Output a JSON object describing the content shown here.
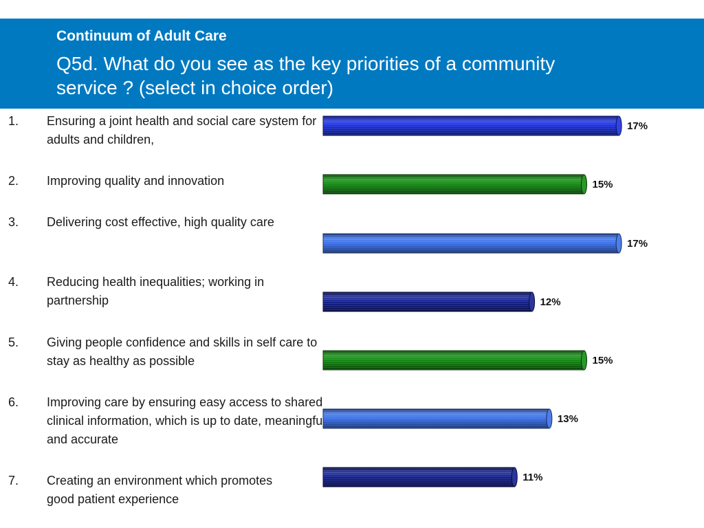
{
  "header": {
    "title": "Continuum of Adult Care",
    "subtitle": "Q5d. What do you see as the key priorities of a community service ? (select in choice order)"
  },
  "items": [
    {
      "num": "1.",
      "text": "Ensuring a joint health and social care system for adults and children,"
    },
    {
      "num": "2.",
      "text": "Improving quality and innovation"
    },
    {
      "num": "3.",
      "text": "Delivering cost effective, high quality care"
    },
    {
      "num": "4.",
      "text": "Reducing health inequalities; working in partnership"
    },
    {
      "num": "5.",
      "text": "Giving people confidence and skills in self care to stay as healthy as possible"
    },
    {
      "num": "6.",
      "text": "Improving care by ensuring easy access to shared clinical information, which is up to date, meaningful and accurate"
    },
    {
      "num": "7.",
      "text": "Creating an environment which promotes good patient experience"
    }
  ],
  "chart_data": {
    "type": "bar",
    "orientation": "horizontal",
    "categories": [
      "Ensuring a joint health and social care system for adults and children,",
      "Improving quality and innovation",
      "Delivering cost effective, high quality care",
      "Reducing health inequalities; working in partnership",
      "Giving people confidence and skills in self care to stay as healthy as possible",
      "Improving care by ensuring easy access to shared clinical information, which is up to date, meaningful and accurate",
      "Creating an environment which promotes good patient experience"
    ],
    "values": [
      17,
      15,
      17,
      12,
      15,
      13,
      11
    ],
    "value_labels": [
      "17%",
      "15%",
      "17%",
      "12%",
      "15%",
      "13%",
      "11%"
    ],
    "bar_colors": [
      "#1a2fe0",
      "#138a13",
      "#3a6fe8",
      "#14208f",
      "#138a13",
      "#3a6fe8",
      "#14208f"
    ],
    "grid": false,
    "legend": "none"
  }
}
